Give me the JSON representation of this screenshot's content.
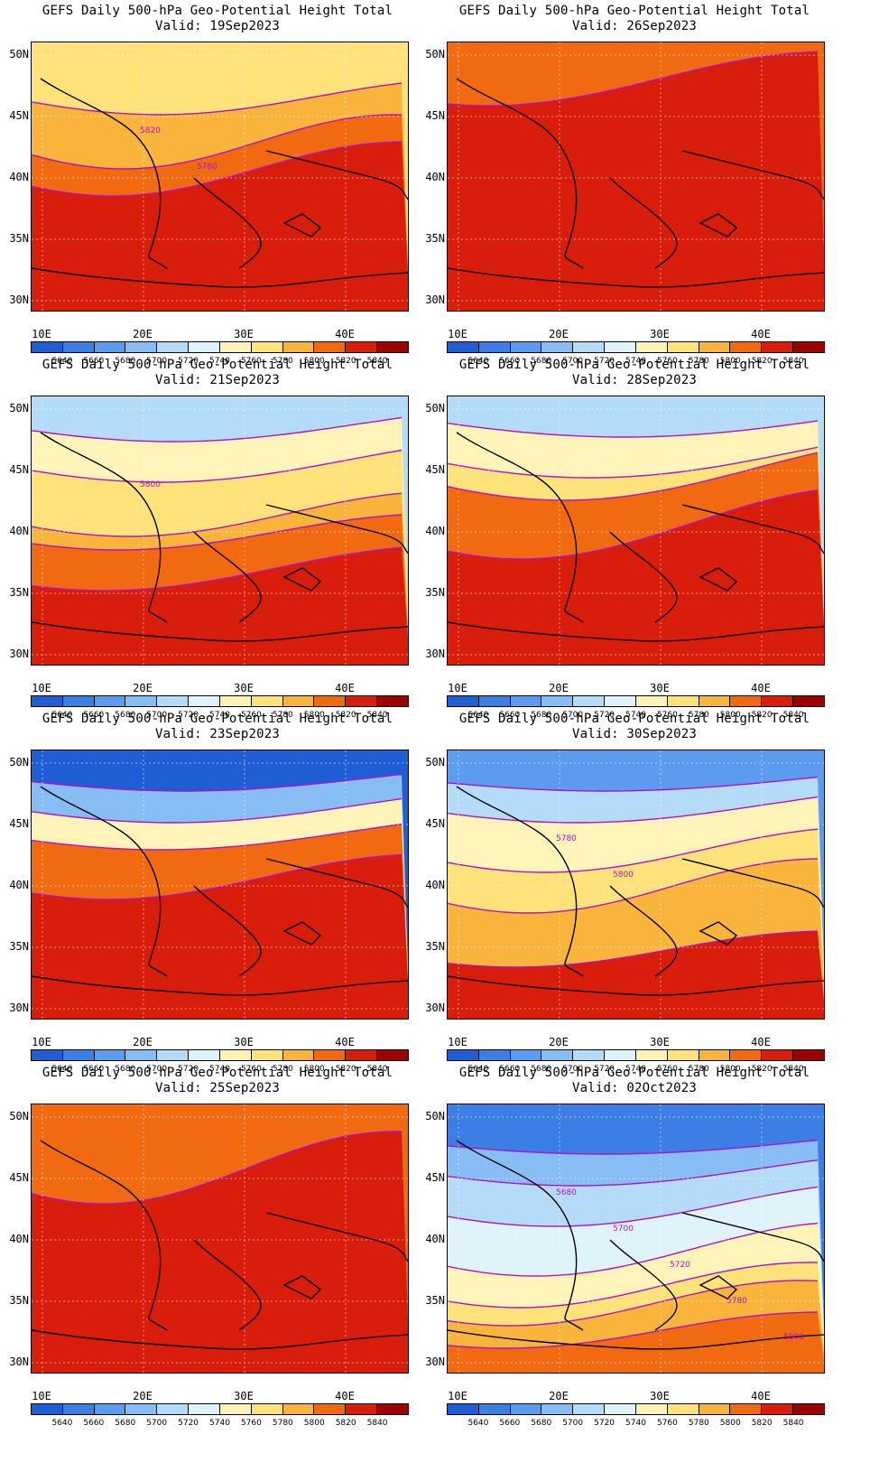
{
  "panels": [
    {
      "title": "GEFS Daily 500-hPa Geo-Potential Height Total",
      "valid": "Valid: 19Sep2023",
      "contour_labels": [
        "5820",
        "5780"
      ]
    },
    {
      "title": "GEFS Daily 500-hPa Geo-Potential Height Total",
      "valid": "Valid: 26Sep2023",
      "contour_labels": []
    },
    {
      "title": "GEFS Daily 500-hPa Geo-Potential Height Total",
      "valid": "Valid: 21Sep2023",
      "contour_labels": [
        "5800"
      ]
    },
    {
      "title": "GEFS Daily 500-hPa Geo-Potential Height Total",
      "valid": "Valid: 28Sep2023",
      "contour_labels": []
    },
    {
      "title": "GEFS Daily 500-hPa Geo-Potential Height Total",
      "valid": "Valid: 23Sep2023",
      "contour_labels": []
    },
    {
      "title": "GEFS Daily 500-hPa Geo-Potential Height Total",
      "valid": "Valid: 30Sep2023",
      "contour_labels": [
        "5780",
        "5800"
      ]
    },
    {
      "title": "GEFS Daily 500-hPa Geo-Potential Height Total",
      "valid": "Valid: 25Sep2023",
      "contour_labels": []
    },
    {
      "title": "GEFS Daily 500-hPa Geo-Potential Height Total",
      "valid": "Valid: 02Oct2023",
      "contour_labels": [
        "5680",
        "5700",
        "5720",
        "5780",
        "5800"
      ]
    }
  ],
  "axes": {
    "lat_labels": [
      "50N",
      "45N",
      "40N",
      "35N",
      "30N"
    ],
    "lon_labels": [
      "10E",
      "20E",
      "30E",
      "40E"
    ]
  },
  "colorbar": {
    "labels": [
      "5640",
      "5660",
      "5680",
      "5700",
      "5720",
      "5740",
      "5760",
      "5780",
      "5800",
      "5820",
      "5840"
    ],
    "colors": [
      "#1e5fd6",
      "#3a7ee6",
      "#5b9bf0",
      "#86bdf5",
      "#b4dcf8",
      "#dff3fb",
      "#fff4b8",
      "#ffe27a",
      "#f9b43c",
      "#f26a10",
      "#d81e0a",
      "#9e0000"
    ]
  }
}
